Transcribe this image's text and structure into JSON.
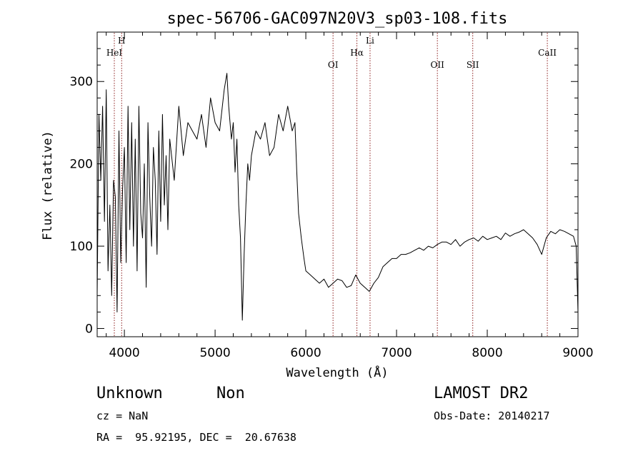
{
  "chart_data": {
    "type": "line",
    "title": "spec-56706-GAC097N20V3_sp03-108.fits",
    "xlabel": "Wavelength (Å)",
    "ylabel": "Flux (relative)",
    "xlim": [
      3700,
      9000
    ],
    "ylim": [
      -10,
      360
    ],
    "xticks": [
      4000,
      5000,
      6000,
      7000,
      8000,
      9000
    ],
    "yticks": [
      0,
      100,
      200,
      300
    ],
    "grid": false,
    "line_color": "#000000",
    "marker_color": "#8b1a1a",
    "lines": [
      {
        "label": "HeI",
        "wavelength": 3889,
        "row": 2
      },
      {
        "label": "H",
        "wavelength": 3970,
        "row": 1
      },
      {
        "label": "OI",
        "wavelength": 6300,
        "row": 3
      },
      {
        "label": "Hα",
        "wavelength": 6563,
        "row": 2
      },
      {
        "label": "Li",
        "wavelength": 6708,
        "row": 1
      },
      {
        "label": "OII",
        "wavelength": 7450,
        "row": 3
      },
      {
        "label": "SII",
        "wavelength": 7840,
        "row": 3
      },
      {
        "label": "CaII",
        "wavelength": 8662,
        "row": 2
      }
    ],
    "spectrum": {
      "x": [
        3700,
        3720,
        3740,
        3760,
        3780,
        3800,
        3820,
        3840,
        3860,
        3880,
        3900,
        3920,
        3940,
        3960,
        3980,
        4000,
        4020,
        4040,
        4060,
        4080,
        4100,
        4120,
        4140,
        4160,
        4180,
        4200,
        4220,
        4240,
        4260,
        4280,
        4300,
        4320,
        4340,
        4360,
        4380,
        4400,
        4420,
        4440,
        4460,
        4480,
        4500,
        4550,
        4600,
        4650,
        4700,
        4750,
        4800,
        4850,
        4900,
        4950,
        5000,
        5050,
        5100,
        5130,
        5150,
        5180,
        5200,
        5220,
        5240,
        5260,
        5280,
        5300,
        5320,
        5340,
        5360,
        5380,
        5400,
        5450,
        5500,
        5550,
        5600,
        5650,
        5700,
        5750,
        5800,
        5850,
        5880,
        5900,
        5920,
        5950,
        5980,
        6000,
        6050,
        6100,
        6150,
        6200,
        6250,
        6300,
        6350,
        6400,
        6450,
        6500,
        6550,
        6600,
        6650,
        6700,
        6750,
        6800,
        6850,
        6900,
        6950,
        7000,
        7050,
        7100,
        7150,
        7200,
        7250,
        7300,
        7350,
        7400,
        7450,
        7500,
        7550,
        7600,
        7650,
        7700,
        7750,
        7800,
        7850,
        7900,
        7950,
        8000,
        8050,
        8100,
        8150,
        8200,
        8250,
        8300,
        8350,
        8400,
        8450,
        8500,
        8550,
        8600,
        8650,
        8700,
        8750,
        8800,
        8850,
        8900,
        8950,
        8980,
        9000
      ],
      "y": [
        40,
        260,
        180,
        270,
        130,
        290,
        70,
        150,
        40,
        180,
        160,
        20,
        240,
        80,
        170,
        220,
        80,
        270,
        120,
        250,
        100,
        230,
        70,
        270,
        140,
        110,
        200,
        50,
        250,
        160,
        100,
        220,
        180,
        90,
        240,
        130,
        260,
        150,
        210,
        120,
        230,
        180,
        270,
        210,
        250,
        240,
        230,
        260,
        220,
        280,
        250,
        240,
        290,
        310,
        270,
        230,
        250,
        190,
        230,
        150,
        110,
        10,
        90,
        150,
        200,
        180,
        210,
        240,
        230,
        250,
        210,
        220,
        260,
        240,
        270,
        240,
        250,
        190,
        140,
        110,
        85,
        70,
        65,
        60,
        55,
        60,
        50,
        55,
        60,
        58,
        50,
        52,
        65,
        55,
        50,
        45,
        55,
        62,
        75,
        80,
        85,
        85,
        90,
        90,
        92,
        95,
        98,
        95,
        100,
        98,
        102,
        105,
        105,
        102,
        108,
        100,
        105,
        108,
        110,
        106,
        112,
        108,
        110,
        112,
        108,
        116,
        112,
        115,
        117,
        120,
        115,
        110,
        102,
        90,
        110,
        118,
        115,
        120,
        118,
        115,
        112,
        100,
        20
      ]
    }
  },
  "info": {
    "object_class": "Unknown",
    "subclass": "Non",
    "survey": "LAMOST DR2",
    "redshift": "cz = NaN",
    "obs_date": "Obs-Date: 20140217",
    "coords": "RA =  95.92195, DEC =  20.67638"
  }
}
